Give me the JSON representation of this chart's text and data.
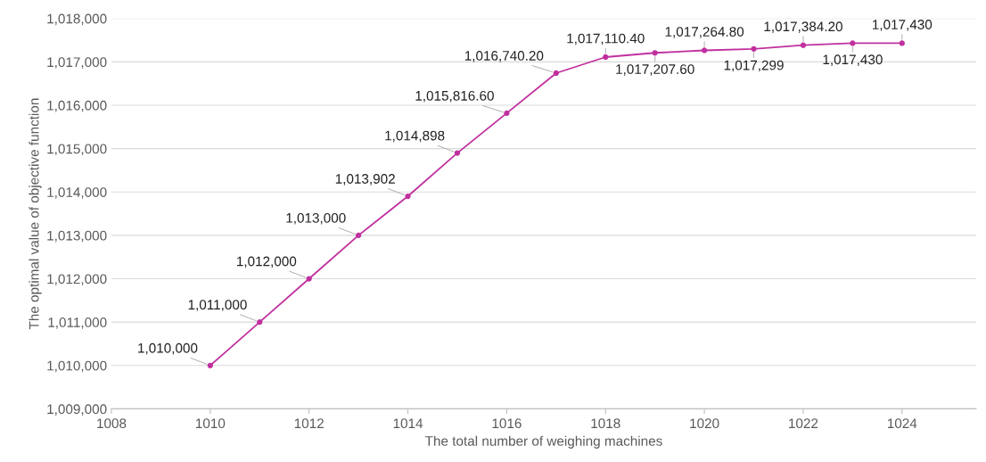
{
  "chart_data": {
    "type": "line",
    "xlabel": "The total number of weighing machines",
    "ylabel": "The optimal value of objective function",
    "x": [
      1010,
      1011,
      1012,
      1013,
      1014,
      1015,
      1016,
      1017,
      1018,
      1019,
      1020,
      1021,
      1022,
      1023,
      1024
    ],
    "series": [
      {
        "color": "#c0309f",
        "values": [
          1010000,
          1011000,
          1012000,
          1013000,
          1013902,
          1014898,
          1015816.6,
          1016740.2,
          1017110.4,
          1017207.6,
          1017264.8,
          1017299,
          1017384.2,
          1017430,
          1017430
        ],
        "value_labels": [
          "1,010,000",
          "1,011,000",
          "1,012,000",
          "1,013,000",
          "1,013,902",
          "1,014,898",
          "1,015,816.60",
          "1,016,740.20",
          "1,017,110.40",
          "1,017,207.60",
          "1,017,264.80",
          "1,017,299",
          "1,017,384.20",
          "1,017,430",
          "1,017,430"
        ]
      }
    ],
    "xlim": [
      1008,
      1025.5
    ],
    "xticks": [
      1008,
      1010,
      1012,
      1014,
      1016,
      1018,
      1020,
      1022,
      1024
    ],
    "ylim": [
      1009000,
      1018000
    ],
    "yticks": [
      {
        "value": 1009000,
        "label": "1,009,000"
      },
      {
        "value": 1010000,
        "label": "1,010,000"
      },
      {
        "value": 1011000,
        "label": "1,011,000"
      },
      {
        "value": 1012000,
        "label": "1,012,000"
      },
      {
        "value": 1013000,
        "label": "1,013,000"
      },
      {
        "value": 1014000,
        "label": "1,014,000"
      },
      {
        "value": 1015000,
        "label": "1,015,000"
      },
      {
        "value": 1016000,
        "label": "1,016,000"
      },
      {
        "value": 1017000,
        "label": "1,017,000"
      },
      {
        "value": 1018000,
        "label": "1,018,000"
      }
    ],
    "grid": "y",
    "marker": "circle",
    "line_style": "solid",
    "data_labels": true
  }
}
